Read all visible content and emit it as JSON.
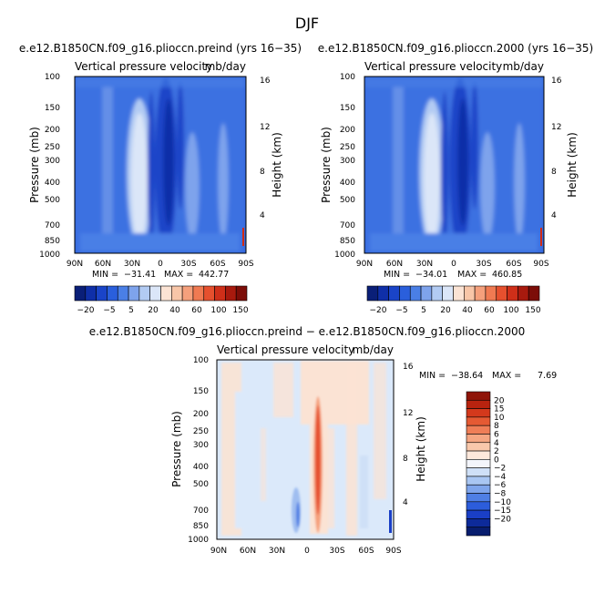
{
  "figure": {
    "title": "DJF"
  },
  "colors": {
    "blues": [
      "#0a1f78",
      "#0f2fa8",
      "#1a44c8",
      "#2a5fdc",
      "#4a7fe6",
      "#7ea3ec",
      "#b2cbf3",
      "#dbe6f8"
    ],
    "reds": [
      "#fbe3d4",
      "#f8c6a8",
      "#f5a07c",
      "#f07a52",
      "#e6502e",
      "#cf2f19",
      "#a81a0e",
      "#7c0d08"
    ],
    "diff_ramp": [
      "#f3f5fb",
      "#cfe0f7",
      "#a9c6f2",
      "#7fa5eb",
      "#4f7fe4",
      "#2c5ddb",
      "#1a3fc6",
      "#0d2a9a",
      "#081d6e"
    ],
    "diff_pos": [
      "#fde8db",
      "#f9c8ab",
      "#f5a682",
      "#ef7e57",
      "#e55a33",
      "#d4391c",
      "#b8230f",
      "#8f1408"
    ]
  },
  "chart_data": [
    {
      "type": "heatmap",
      "title": "e.e12.B1850CN.f09_g16.plioccn.preind (yrs 16−35)",
      "subtitle_left": "Vertical pressure velocity",
      "subtitle_right": "mb/day",
      "ylabel": "Pressure (mb)",
      "y2label": "Height (km)",
      "x_ticks": [
        "90N",
        "60N",
        "30N",
        "0",
        "30S",
        "60S",
        "90S"
      ],
      "y_ticks": [
        "100",
        "150",
        "200",
        "250",
        "300",
        "400",
        "500",
        "700",
        "850",
        "1000"
      ],
      "y2_ticks": [
        "16",
        "12",
        "8",
        "4"
      ],
      "stats": {
        "min_label": "MIN =",
        "min": "−31.41",
        "max_label": "MAX =",
        "max": "442.77"
      },
      "colorbar_ticks": [
        "−20",
        "−5",
        "5",
        "20",
        "40",
        "60",
        "100",
        "150"
      ]
    },
    {
      "type": "heatmap",
      "title": "e.e12.B1850CN.f09_g16.plioccn.2000 (yrs 16−35)",
      "subtitle_left": "Vertical pressure velocity",
      "subtitle_right": "mb/day",
      "ylabel": "Pressure (mb)",
      "y2label": "Height (km)",
      "x_ticks": [
        "90N",
        "60N",
        "30N",
        "0",
        "30S",
        "60S",
        "90S"
      ],
      "y_ticks": [
        "100",
        "150",
        "200",
        "250",
        "300",
        "400",
        "500",
        "700",
        "850",
        "1000"
      ],
      "y2_ticks": [
        "16",
        "12",
        "8",
        "4"
      ],
      "stats": {
        "min_label": "MIN =",
        "min": "−34.01",
        "max_label": "MAX =",
        "max": "460.85"
      },
      "colorbar_ticks": [
        "−20",
        "−5",
        "5",
        "20",
        "40",
        "60",
        "100",
        "150"
      ]
    },
    {
      "type": "heatmap",
      "title": "e.e12.B1850CN.f09_g16.plioccn.preind − e.e12.B1850CN.f09_g16.plioccn.2000",
      "subtitle_left": "Vertical pressure velocity",
      "subtitle_right": "mb/day",
      "ylabel": "Pressure (mb)",
      "y2label": "Height (km)",
      "x_ticks": [
        "90N",
        "60N",
        "30N",
        "0",
        "30S",
        "60S",
        "90S"
      ],
      "y_ticks": [
        "100",
        "150",
        "200",
        "250",
        "300",
        "400",
        "500",
        "700",
        "850",
        "1000"
      ],
      "y2_ticks": [
        "16",
        "12",
        "8",
        "4"
      ],
      "stats": {
        "min_label": "MIN =",
        "min": "−38.64",
        "max_label": "MAX =",
        "max": "7.69"
      },
      "colorbar_ticks": [
        "20",
        "15",
        "10",
        "8",
        "6",
        "4",
        "2",
        "0",
        "−2",
        "−4",
        "−6",
        "−8",
        "−10",
        "−15",
        "−20"
      ]
    }
  ]
}
